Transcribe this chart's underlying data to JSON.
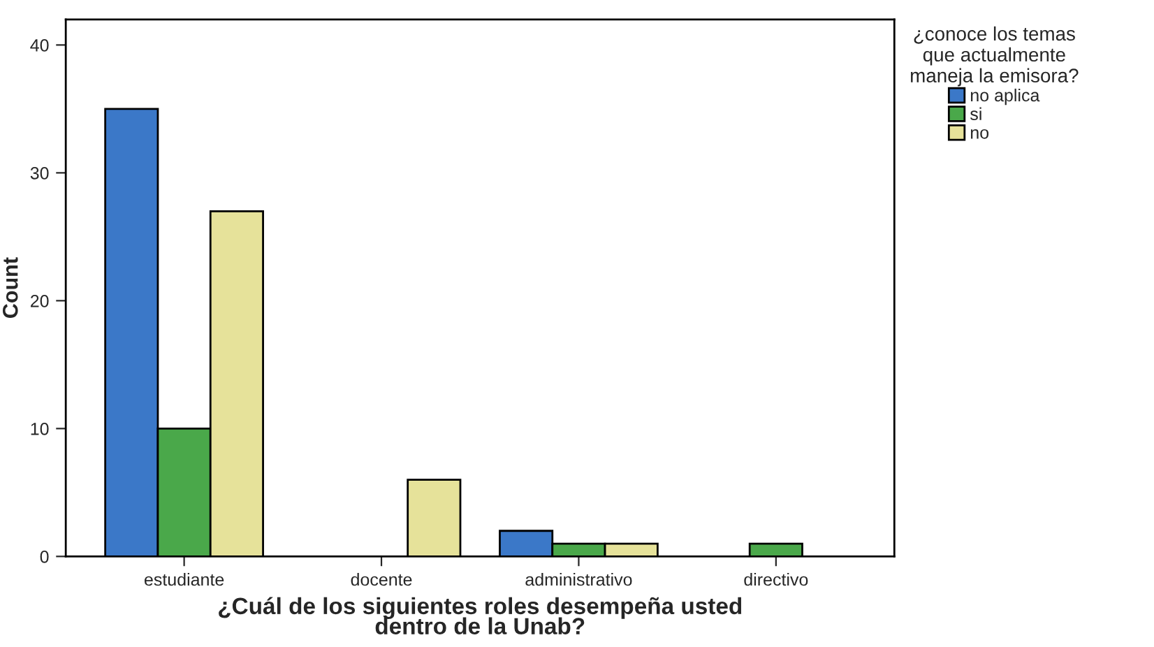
{
  "chart_data": {
    "type": "bar",
    "xlabel": "¿Cuál de los siguientes roles desempeña usted\ndentro de la Unab?",
    "ylabel": "Count",
    "legend_title": "¿conoce los temas\nque actualmente\nmaneja la emisora?",
    "categories": [
      "estudiante",
      "docente",
      "administrativo",
      "directivo"
    ],
    "series": [
      {
        "name": "no aplica",
        "color": "#3b78c8",
        "values": [
          35,
          null,
          2,
          null
        ]
      },
      {
        "name": "si",
        "color": "#4aa84a",
        "values": [
          10,
          null,
          1,
          1
        ]
      },
      {
        "name": "no",
        "color": "#e6e29a",
        "values": [
          27,
          6,
          1,
          null
        ]
      }
    ],
    "ylim": [
      0,
      42
    ],
    "yticks": [
      0,
      10,
      20,
      30,
      40
    ],
    "grid": false,
    "legend": "top right"
  }
}
